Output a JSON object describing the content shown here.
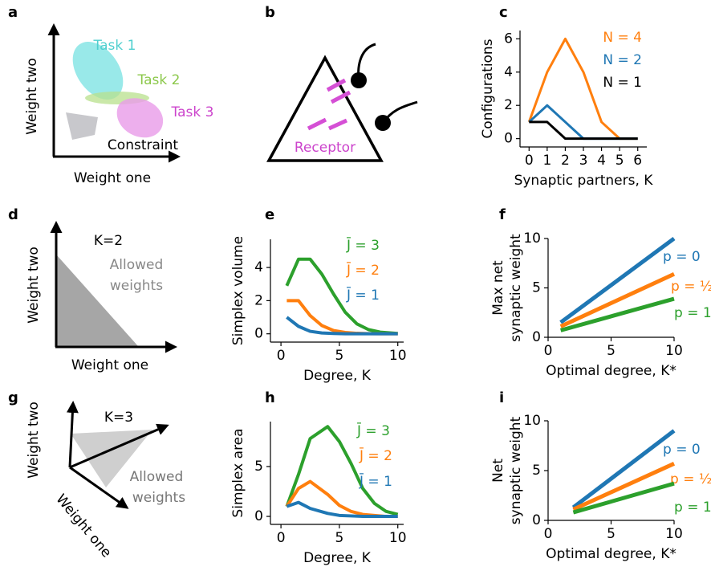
{
  "panel_labels": [
    "a",
    "b",
    "c",
    "d",
    "e",
    "f",
    "g",
    "h",
    "i"
  ],
  "diagrams": {
    "a": {
      "tasks": [
        "Task 1",
        "Task 2",
        "Task 3"
      ],
      "constraint": "Constraint",
      "xlabel": "Weight one",
      "ylabel": "Weight two"
    },
    "b": {
      "receptor": "Receptor"
    },
    "d": {
      "title": "K=2",
      "region": [
        "Allowed",
        "weights"
      ],
      "xlabel": "Weight one",
      "ylabel": "Weight two"
    },
    "g": {
      "title": "K=3",
      "region": [
        "Allowed",
        "weights"
      ],
      "axis_one": "Weight one",
      "axis_two": "Weight two"
    }
  },
  "chart_data": [
    {
      "type": "line",
      "xlabel": "Synaptic partners, K",
      "ylabel": [
        "Configurations"
      ],
      "x": [
        0,
        1,
        2,
        3,
        4,
        5,
        6
      ],
      "xlim": [
        -0.5,
        6.5
      ],
      "ylim": [
        -0.5,
        6.5
      ],
      "xticks": [
        0,
        1,
        2,
        3,
        4,
        5,
        6
      ],
      "yticks": [
        0,
        2,
        4,
        6
      ],
      "series": [
        {
          "name": "N = 4",
          "color": "#ff7f0e",
          "values": [
            1,
            4,
            6,
            4,
            1,
            0,
            0
          ]
        },
        {
          "name": "N = 2",
          "color": "#1f77b4",
          "values": [
            1,
            2,
            1,
            0,
            0,
            0,
            0
          ]
        },
        {
          "name": "N = 1",
          "color": "#000000",
          "values": [
            1,
            1,
            0,
            0,
            0,
            0,
            0
          ]
        }
      ]
    },
    {
      "type": "line",
      "xlabel": "Degree, K",
      "ylabel": [
        "Simplex volume"
      ],
      "x": [
        0.5,
        1.5,
        2.5,
        3.5,
        4.5,
        5.5,
        6.5,
        7.5,
        8.5,
        10
      ],
      "xlim": [
        -0.9,
        10.5
      ],
      "ylim": [
        -0.5,
        5.7
      ],
      "xticks": [
        0,
        5,
        10
      ],
      "yticks": [
        0,
        2,
        4
      ],
      "series": [
        {
          "name": "J̄ = 3",
          "color": "#2ca02c",
          "values": [
            2.9,
            4.5,
            4.5,
            3.6,
            2.4,
            1.3,
            0.6,
            0.25,
            0.1,
            0.02
          ]
        },
        {
          "name": "J̄ = 2",
          "color": "#ff7f0e",
          "values": [
            2,
            2,
            1.1,
            0.5,
            0.2,
            0.08,
            0.03,
            0.01,
            0,
            0
          ]
        },
        {
          "name": "J̄ = 1",
          "color": "#1f77b4",
          "values": [
            1,
            0.45,
            0.15,
            0.05,
            0.02,
            0,
            0,
            0,
            0,
            0
          ]
        }
      ]
    },
    {
      "type": "line",
      "xlabel": "Optimal degree, K*",
      "ylabel": [
        "Max net",
        "synaptic weight"
      ],
      "x": [
        1,
        10
      ],
      "xlim": [
        0,
        10
      ],
      "ylim": [
        0,
        10
      ],
      "xticks": [
        0,
        5,
        10
      ],
      "yticks": [
        0,
        5,
        10
      ],
      "series": [
        {
          "name": "p = 0",
          "color": "#1f77b4",
          "values": [
            1.5,
            10
          ]
        },
        {
          "name": "p = ½",
          "color": "#ff7f0e",
          "values": [
            1.1,
            6.4
          ]
        },
        {
          "name": "p = 1",
          "color": "#2ca02c",
          "values": [
            0.7,
            3.9
          ]
        }
      ]
    },
    {
      "type": "line",
      "xlabel": "Degree, K",
      "ylabel": [
        "Simplex area"
      ],
      "x": [
        0.5,
        1.5,
        2.5,
        4,
        5,
        6,
        7,
        8,
        9,
        10
      ],
      "xlim": [
        -0.9,
        10.5
      ],
      "ylim": [
        -0.8,
        9.5
      ],
      "xticks": [
        0,
        5,
        10
      ],
      "yticks": [
        0,
        5
      ],
      "series": [
        {
          "name": "J̄ = 3",
          "color": "#2ca02c",
          "values": [
            1,
            4.2,
            7.8,
            9,
            7.5,
            5.3,
            2.8,
            1.3,
            0.5,
            0.2
          ]
        },
        {
          "name": "J̄ = 2",
          "color": "#ff7f0e",
          "values": [
            1,
            2.8,
            3.5,
            2.2,
            1.1,
            0.5,
            0.2,
            0.1,
            0,
            0
          ]
        },
        {
          "name": "J̄ = 1",
          "color": "#1f77b4",
          "values": [
            1,
            1.4,
            0.8,
            0.3,
            0.1,
            0.05,
            0,
            0,
            0,
            0
          ]
        }
      ]
    },
    {
      "type": "line",
      "xlabel": "Optimal degree, K*",
      "ylabel": [
        "Net",
        "synaptic weight"
      ],
      "x": [
        2,
        10
      ],
      "xlim": [
        0,
        10
      ],
      "ylim": [
        0,
        10
      ],
      "xticks": [
        0,
        5,
        10
      ],
      "yticks": [
        0,
        5,
        10
      ],
      "series": [
        {
          "name": "p = 0",
          "color": "#1f77b4",
          "values": [
            1.3,
            9
          ]
        },
        {
          "name": "p = ½",
          "color": "#ff7f0e",
          "values": [
            1.1,
            5.7
          ]
        },
        {
          "name": "p = 1",
          "color": "#2ca02c",
          "values": [
            0.8,
            3.7
          ]
        }
      ]
    }
  ]
}
